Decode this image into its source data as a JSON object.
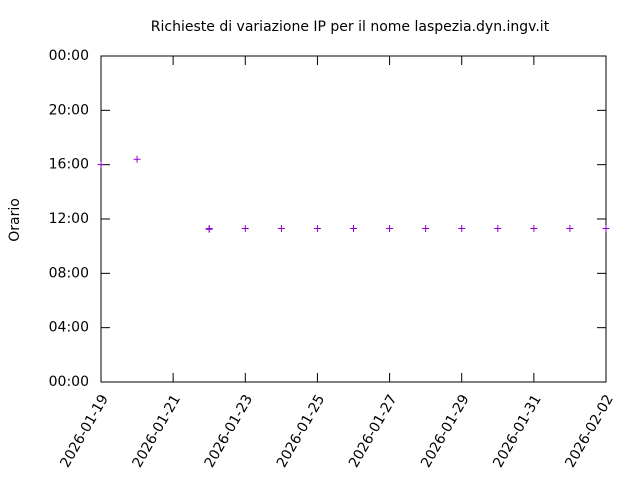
{
  "chart_data": {
    "type": "scatter",
    "title": "Richieste di variazione IP per il nome laspezia.dyn.ingv.it",
    "y_label": "Orario",
    "series": [
      {
        "color": "#9400d3",
        "x": [
          "2026-01-19",
          "2026-01-20",
          "2026-01-22",
          "2026-01-22",
          "2026-01-23",
          "2026-01-24",
          "2026-01-25",
          "2026-01-26",
          "2026-01-27",
          "2026-01-28",
          "2026-01-29",
          "2026-01-30",
          "2026-01-31",
          "2026-02-01",
          "2026-02-02"
        ],
        "values": [
          16.0,
          16.4,
          11.25,
          11.3,
          11.3,
          11.3,
          11.3,
          11.3,
          11.3,
          11.3,
          11.3,
          11.3,
          11.3,
          11.3,
          11.3
        ]
      }
    ],
    "xlim": [
      "2026-01-19",
      "2026-02-02"
    ],
    "xticks": [
      "2026-01-19",
      "2026-01-21",
      "2026-01-23",
      "2026-01-25",
      "2026-01-27",
      "2026-01-29",
      "2026-01-31",
      "2026-02-02"
    ],
    "ylim": [
      0,
      24
    ],
    "yticks": [
      {
        "value": 0,
        "label": "00:00"
      },
      {
        "value": 4,
        "label": "04:00"
      },
      {
        "value": 8,
        "label": "08:00"
      },
      {
        "value": 12,
        "label": "12:00"
      },
      {
        "value": 16,
        "label": "16:00"
      },
      {
        "value": 20,
        "label": "20:00"
      },
      {
        "value": 24,
        "label": "00:00"
      }
    ]
  }
}
